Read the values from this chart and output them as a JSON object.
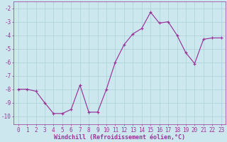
{
  "x": [
    0,
    1,
    2,
    3,
    4,
    5,
    6,
    7,
    8,
    9,
    10,
    11,
    12,
    13,
    14,
    15,
    16,
    17,
    18,
    19,
    20,
    21,
    22,
    23
  ],
  "y": [
    -8.0,
    -8.0,
    -8.15,
    -9.0,
    -9.8,
    -9.8,
    -9.5,
    -7.7,
    -9.7,
    -9.7,
    -8.0,
    -6.0,
    -4.7,
    -3.9,
    -3.5,
    -2.3,
    -3.1,
    -3.0,
    -4.0,
    -5.3,
    -6.1,
    -4.3,
    -4.2,
    -4.2
  ],
  "line_color": "#993399",
  "marker": "+",
  "bg_color": "#cce8ee",
  "grid_color": "#b0d4dc",
  "xlabel": "Windchill (Refroidissement éolien,°C)",
  "xlabel_fontsize": 6.0,
  "ylabel_ticks": [
    -2,
    -3,
    -4,
    -5,
    -6,
    -7,
    -8,
    -9,
    -10
  ],
  "xtick_labels": [
    "0",
    "1",
    "2",
    "3",
    "4",
    "5",
    "6",
    "7",
    "8",
    "9",
    "10",
    "11",
    "12",
    "13",
    "14",
    "15",
    "16",
    "17",
    "18",
    "19",
    "20",
    "21",
    "22",
    "23"
  ],
  "ylim": [
    -10.6,
    -1.5
  ],
  "xlim": [
    -0.5,
    23.5
  ],
  "tick_fontsize": 5.5,
  "linewidth": 0.85,
  "markersize": 3.0
}
